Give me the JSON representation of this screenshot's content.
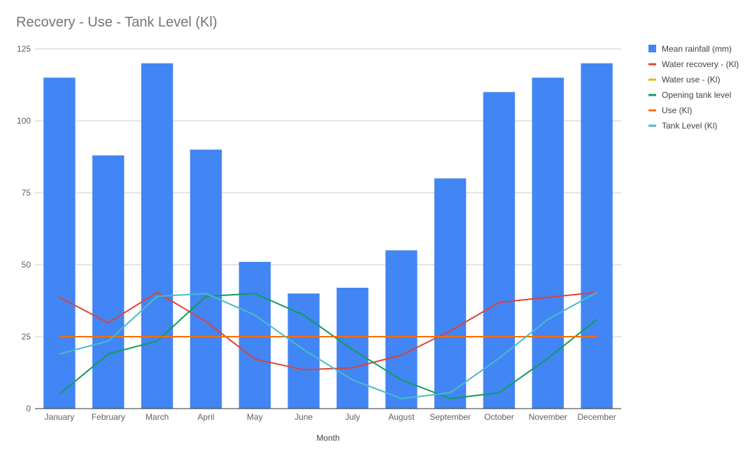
{
  "chart_data": {
    "type": "bar",
    "title": "Recovery - Use - Tank Level (Kl)",
    "xlabel": "Month",
    "ylabel": "",
    "ylim": [
      0,
      125
    ],
    "yticks": [
      0,
      25,
      50,
      75,
      100,
      125
    ],
    "grid": true,
    "legend_position": "right",
    "categories": [
      "January",
      "February",
      "March",
      "April",
      "May",
      "June",
      "July",
      "August",
      "September",
      "October",
      "November",
      "December"
    ],
    "series": [
      {
        "name": "Mean rainfall (mm)",
        "type": "bar",
        "color": "#4285f4",
        "values": [
          115,
          88,
          120,
          90,
          51,
          40,
          42,
          55,
          80,
          110,
          115,
          120
        ]
      },
      {
        "name": "Water recovery - (Kl)",
        "type": "line",
        "color": "#db4437",
        "values": [
          38.7,
          29.8,
          40.4,
          30.3,
          17.2,
          13.5,
          14.2,
          18.6,
          27,
          36.9,
          38.7,
          40.4
        ]
      },
      {
        "name": "Water use - (Kl)",
        "type": "line",
        "color": "#f4b400",
        "values": [
          25,
          25,
          25,
          25,
          25,
          25,
          25,
          25,
          25,
          25,
          25,
          25
        ]
      },
      {
        "name": "Opening tank level",
        "type": "line",
        "color": "#0f9d58",
        "values": [
          5,
          19,
          23.5,
          39,
          40,
          32.5,
          20.5,
          10,
          3.5,
          5.5,
          17.5,
          31
        ]
      },
      {
        "name": "Use (Kl)",
        "type": "line",
        "color": "#ff6d00",
        "values": [
          25,
          25,
          25,
          25,
          25,
          25,
          25,
          25,
          25,
          25,
          25,
          25
        ]
      },
      {
        "name": "Tank Level (Kl)",
        "type": "line",
        "color": "#46bdc6",
        "values": [
          19,
          23.5,
          39,
          40,
          32.5,
          20.5,
          10,
          3.5,
          5.5,
          17.5,
          31,
          40.4
        ]
      }
    ]
  }
}
